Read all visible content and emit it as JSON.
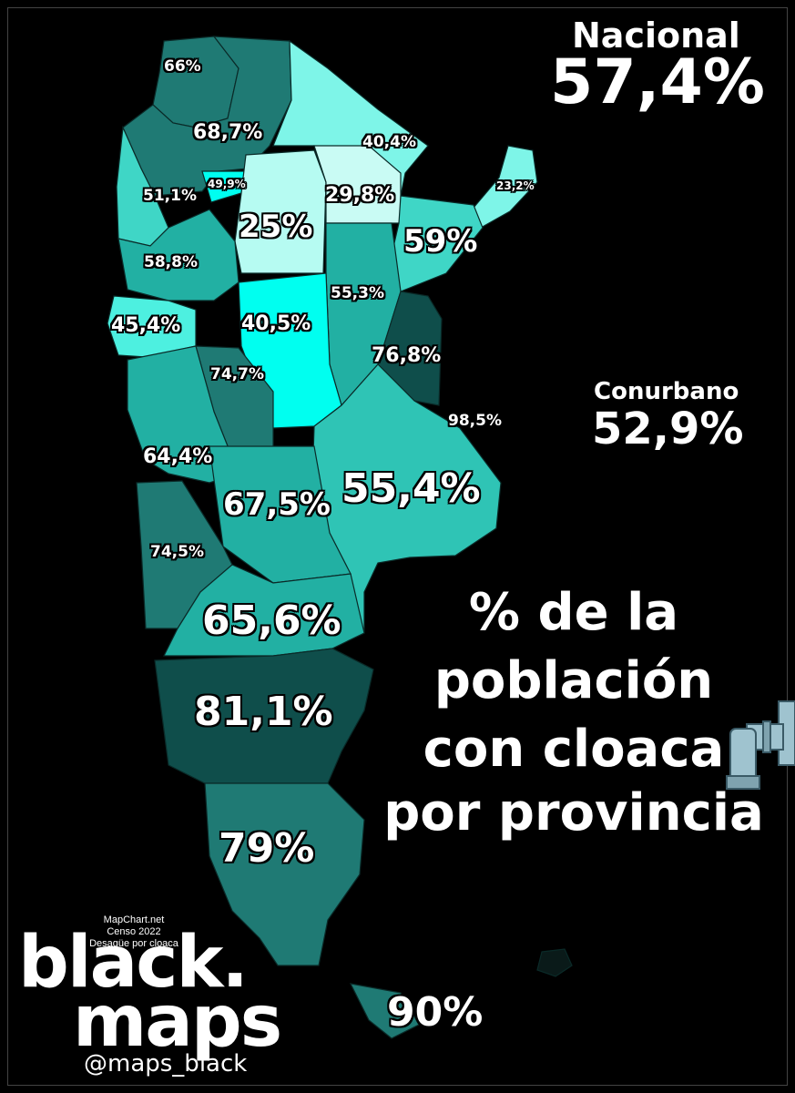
{
  "nacional": {
    "label": "Nacional",
    "value": "57,4%"
  },
  "conurbano": {
    "label": "Conurbano",
    "value": "52,9%"
  },
  "caption": [
    "% de la",
    "población",
    "con cloaca",
    "por provincia"
  ],
  "credits": [
    "MapChart.net",
    "Censo 2022",
    "Desagüe por cloaca"
  ],
  "brand": {
    "line1": "black.",
    "line2": "maps",
    "handle": "@maps_black"
  },
  "icon": "faucet-pipe-icon",
  "colors": {
    "background": "#000000",
    "darkest": "#0f4e4b",
    "dark": "#1f7a74",
    "mid": "#22b0a3",
    "light": "#3fd6c6",
    "lighter": "#4df0e0",
    "cyan": "#00fff0",
    "pale": "#b6fbf2",
    "palest": "#e6fffb"
  },
  "provinces": [
    {
      "value": "66%"
    },
    {
      "value": "68,7%"
    },
    {
      "value": "40,4%"
    },
    {
      "value": "49,9%"
    },
    {
      "value": "23,2%"
    },
    {
      "value": "51,1%"
    },
    {
      "value": "29,8%"
    },
    {
      "value": "25%"
    },
    {
      "value": "59%"
    },
    {
      "value": "58,8%"
    },
    {
      "value": "55,3%"
    },
    {
      "value": "45,4%"
    },
    {
      "value": "40,5%"
    },
    {
      "value": "76,8%"
    },
    {
      "value": "74,7%"
    },
    {
      "value": "98,5%"
    },
    {
      "value": "64,4%"
    },
    {
      "value": "55,4%"
    },
    {
      "value": "67,5%"
    },
    {
      "value": "74,5%"
    },
    {
      "value": "65,6%"
    },
    {
      "value": "81,1%"
    },
    {
      "value": "79%"
    },
    {
      "value": "90%"
    }
  ]
}
